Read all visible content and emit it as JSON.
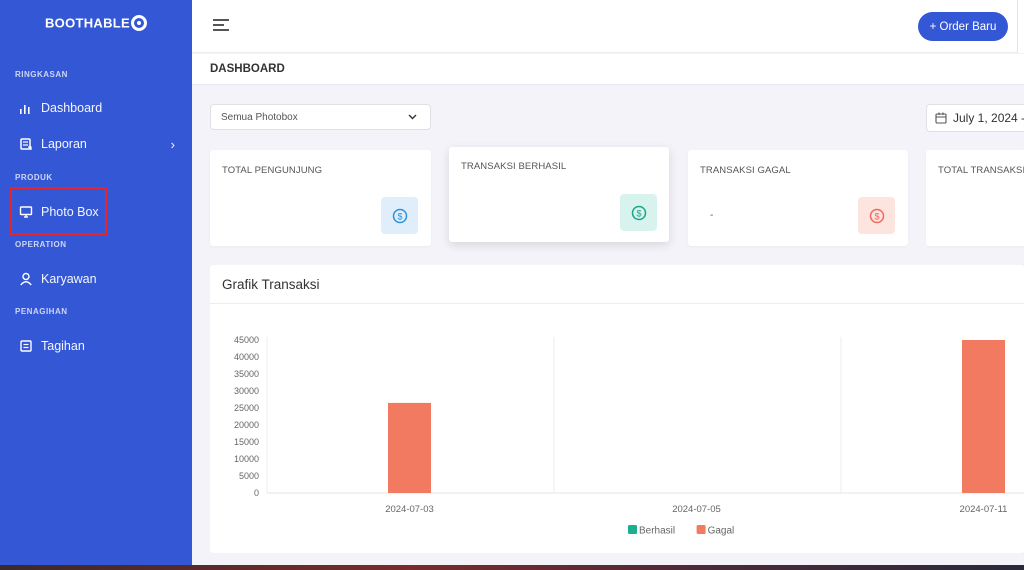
{
  "app": {
    "brand": "BOOTHABLE"
  },
  "sidebar": {
    "sections": [
      {
        "title": "RINGKASAN"
      },
      {
        "title": "PRODUK"
      },
      {
        "title": "OPERATION"
      },
      {
        "title": "PENAGIHAN"
      }
    ],
    "items": [
      {
        "label": "Dashboard",
        "icon": "bar-chart-icon"
      },
      {
        "label": "Laporan",
        "icon": "report-icon"
      },
      {
        "label": "Photo Box",
        "icon": "monitor-icon"
      },
      {
        "label": "Karyawan",
        "icon": "user-icon"
      },
      {
        "label": "Tagihan",
        "icon": "invoice-icon"
      }
    ]
  },
  "topbar": {
    "order_button": "+ Order Baru"
  },
  "page": {
    "title": "DASHBOARD"
  },
  "filters": {
    "photobox_select": "Semua Photobox",
    "date_range": "July 1, 2024 -"
  },
  "cards": [
    {
      "label": "TOTAL PENGUNJUNG",
      "value": "",
      "badge_color": "#dfeefa",
      "icon_color": "#2f8fd8"
    },
    {
      "label": "TRANSAKSI BERHASIL",
      "value": "",
      "badge_color": "#d8f3ee",
      "icon_color": "#18a58a"
    },
    {
      "label": "TRANSAKSI GAGAL",
      "value": "-",
      "badge_color": "#fde4df",
      "icon_color": "#ef6a5a"
    },
    {
      "label": "TOTAL TRANSAKSI",
      "value": "",
      "badge_color": "#dfeefa",
      "icon_color": "#2f8fd8"
    }
  ],
  "chart": {
    "title": "Grafik Transaksi"
  },
  "chart_data": {
    "type": "bar",
    "categories": [
      "2024-07-03",
      "2024-07-05",
      "2024-07-11"
    ],
    "series": [
      {
        "name": "Berhasil",
        "color": "#1cae8e",
        "values": [
          0,
          0,
          0
        ]
      },
      {
        "name": "Gagal",
        "color": "#f27a60",
        "values": [
          26500,
          0,
          45000
        ]
      }
    ],
    "yticks": [
      "0",
      "5000",
      "10000",
      "15000",
      "20000",
      "25000",
      "30000",
      "35000",
      "40000",
      "45000"
    ],
    "ylim": [
      0,
      45000
    ],
    "legend": "bottom-center",
    "colors": {
      "accent": "#3457d5"
    }
  }
}
